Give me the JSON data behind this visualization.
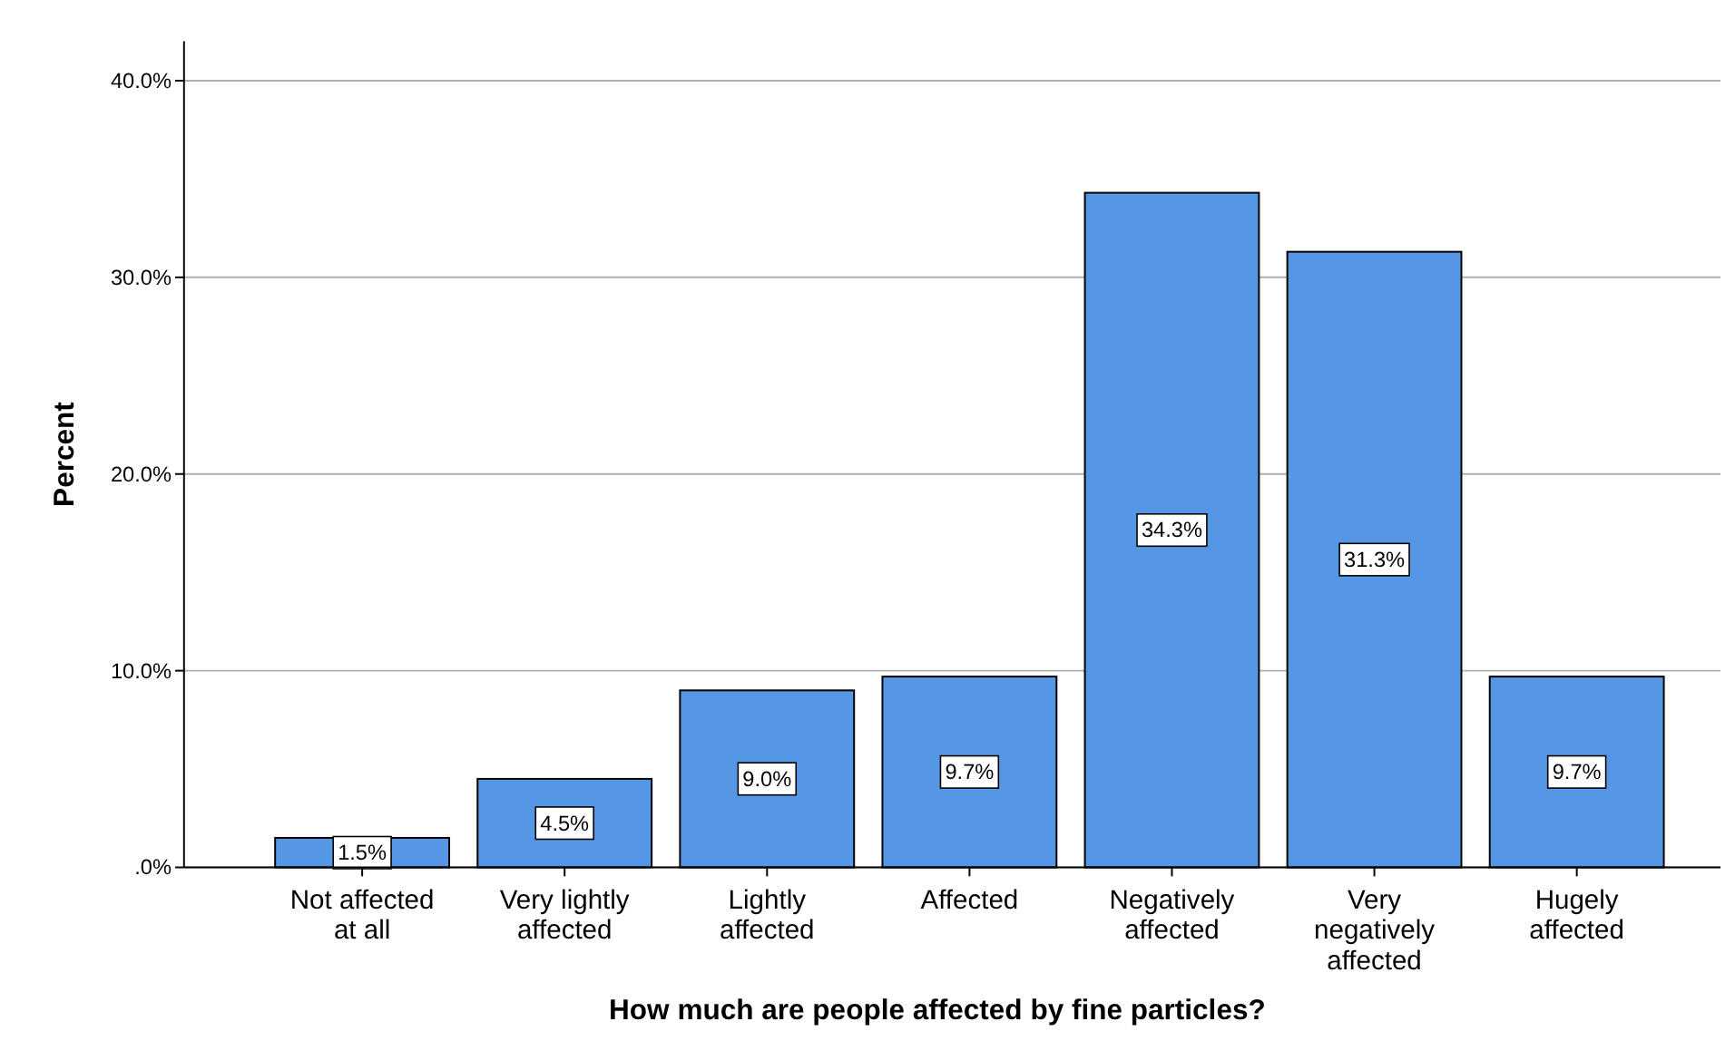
{
  "chart_data": {
    "type": "bar",
    "xlabel": "How much are people affected by fine particles?",
    "ylabel": "Percent",
    "categories": [
      "Not affected at all",
      "Very lightly affected",
      "Lightly affected",
      "Affected",
      "Negatively affected",
      "Very negatively affected",
      "Hugely affected"
    ],
    "values": [
      1.5,
      4.5,
      9.0,
      9.7,
      34.3,
      31.3,
      9.7
    ],
    "value_labels": [
      "1.5%",
      "4.5%",
      "9.0%",
      "9.7%",
      "34.3%",
      "31.3%",
      "9.7%"
    ],
    "color": "#5597e4",
    "ylim": [
      0,
      42
    ],
    "yticks": [
      {
        "value": 0,
        "label": ".0%"
      },
      {
        "value": 10,
        "label": "10.0%"
      },
      {
        "value": 20,
        "label": "20.0%"
      },
      {
        "value": 30,
        "label": "30.0%"
      },
      {
        "value": 40,
        "label": "40.0%"
      }
    ],
    "grid": "y"
  }
}
